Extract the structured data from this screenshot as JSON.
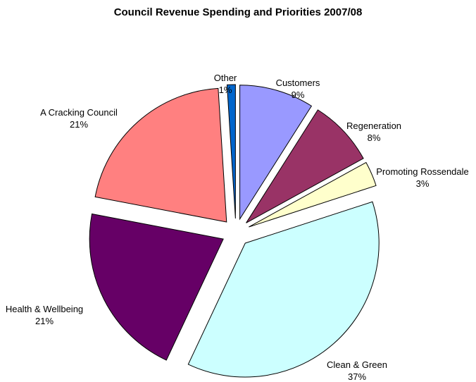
{
  "chart_data": {
    "type": "pie",
    "title": "Council Revenue Spending and Priorities 2007/08",
    "exploded": true,
    "slices": [
      {
        "label": "Customers",
        "value": 9,
        "pct_label": "9%",
        "color": "#9999ff"
      },
      {
        "label": "Regeneration",
        "value": 8,
        "pct_label": "8%",
        "color": "#993366"
      },
      {
        "label": "Promoting Rossendale",
        "value": 3,
        "pct_label": "3%",
        "color": "#ffffcc"
      },
      {
        "label": "Clean & Green",
        "value": 37,
        "pct_label": "37%",
        "color": "#ccffff"
      },
      {
        "label": "Health & Wellbeing",
        "value": 21,
        "pct_label": "21%",
        "color": "#660066"
      },
      {
        "label": "A Cracking Council",
        "value": 21,
        "pct_label": "21%",
        "color": "#ff8080"
      },
      {
        "label": "Other",
        "value": 1,
        "pct_label": "1%",
        "color": "#0066cc"
      }
    ]
  }
}
